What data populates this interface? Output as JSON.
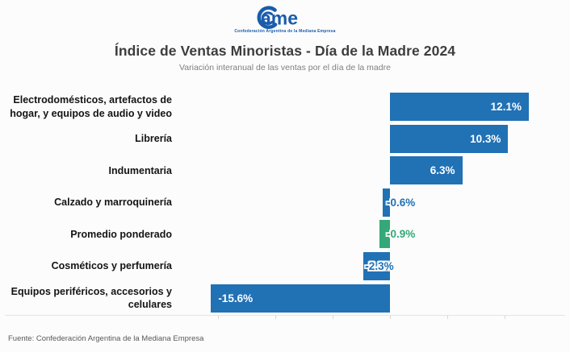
{
  "logo": {
    "brand_text": "ame",
    "tagline": "Confederación Argentina de la Mediana Empresa",
    "color": "#1a5cab"
  },
  "header": {
    "title": "Índice de Ventas Minoristas - Día de la Madre 2024",
    "subtitle": "Variación interanual de las ventas por el día de la madre"
  },
  "chart_data": {
    "type": "bar",
    "orientation": "horizontal",
    "title": "Índice de Ventas Minoristas - Día de la Madre 2024",
    "subtitle": "Variación interanual de las ventas por el día de la madre",
    "value_unit": "%",
    "categories": [
      "Electrodomésticos, artefactos de hogar, y equipos de audio y video",
      "Librería",
      "Indumentaria",
      "Calzado y marroquinería",
      "Promedio ponderado",
      "Cosméticos y perfumería",
      "Equipos periféricos, accesorios y celulares"
    ],
    "values": [
      12.1,
      10.3,
      6.3,
      -0.6,
      -0.9,
      -2.3,
      -15.6
    ],
    "value_labels": [
      "12.1%",
      "10.3%",
      "6.3%",
      "-0.6%",
      "-0.9%",
      "-2.3%",
      "-15.6%"
    ],
    "bar_color_default": "#2171b5",
    "bar_color_highlight": "#35a879",
    "highlight_category": "Promedio ponderado",
    "xlim": [
      -17.5,
      15.5
    ],
    "x_ticks": [
      -15,
      -10,
      -5,
      0,
      5,
      10
    ],
    "x_tick_labels_visible": false,
    "grid": "off",
    "legend": "none"
  },
  "footer": {
    "source": "Fuente: Confederación Argentina de la Mediana Empresa"
  }
}
